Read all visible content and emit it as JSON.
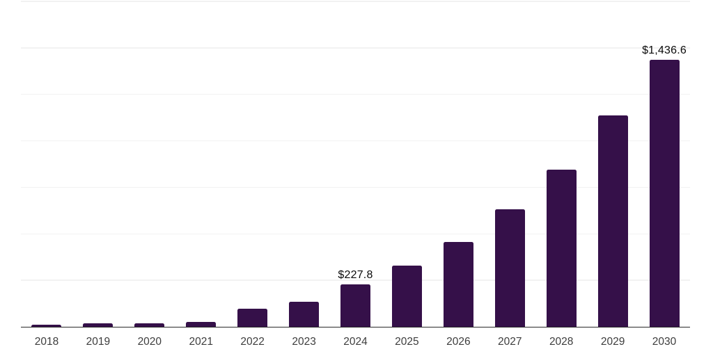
{
  "chart_data": {
    "type": "bar",
    "title": "",
    "xlabel": "",
    "ylabel": "",
    "categories": [
      "2018",
      "2019",
      "2020",
      "2021",
      "2022",
      "2023",
      "2024",
      "2025",
      "2026",
      "2027",
      "2028",
      "2029",
      "2030"
    ],
    "values": [
      13.0,
      20.6,
      19.5,
      27.3,
      99.1,
      136.5,
      227.8,
      330.9,
      454.4,
      630.2,
      847.0,
      1138.6,
      1436.6
    ],
    "data_labels": [
      "",
      "",
      "",
      "",
      "",
      "",
      "$227.8",
      "",
      "",
      "",
      "",
      "",
      "$1,436.6"
    ],
    "ylim": [
      0,
      1750
    ],
    "gridline_step": 250,
    "grid": "horizontal",
    "legend": "none",
    "y_axis_labels_visible": false
  },
  "colors": {
    "background": "#ffffff",
    "bar": "#351049",
    "axis_line": "#2a2a2a",
    "gridline": "#f2f2f2",
    "tick_label": "#3d3d3d",
    "data_label": "#0a0a0a"
  }
}
